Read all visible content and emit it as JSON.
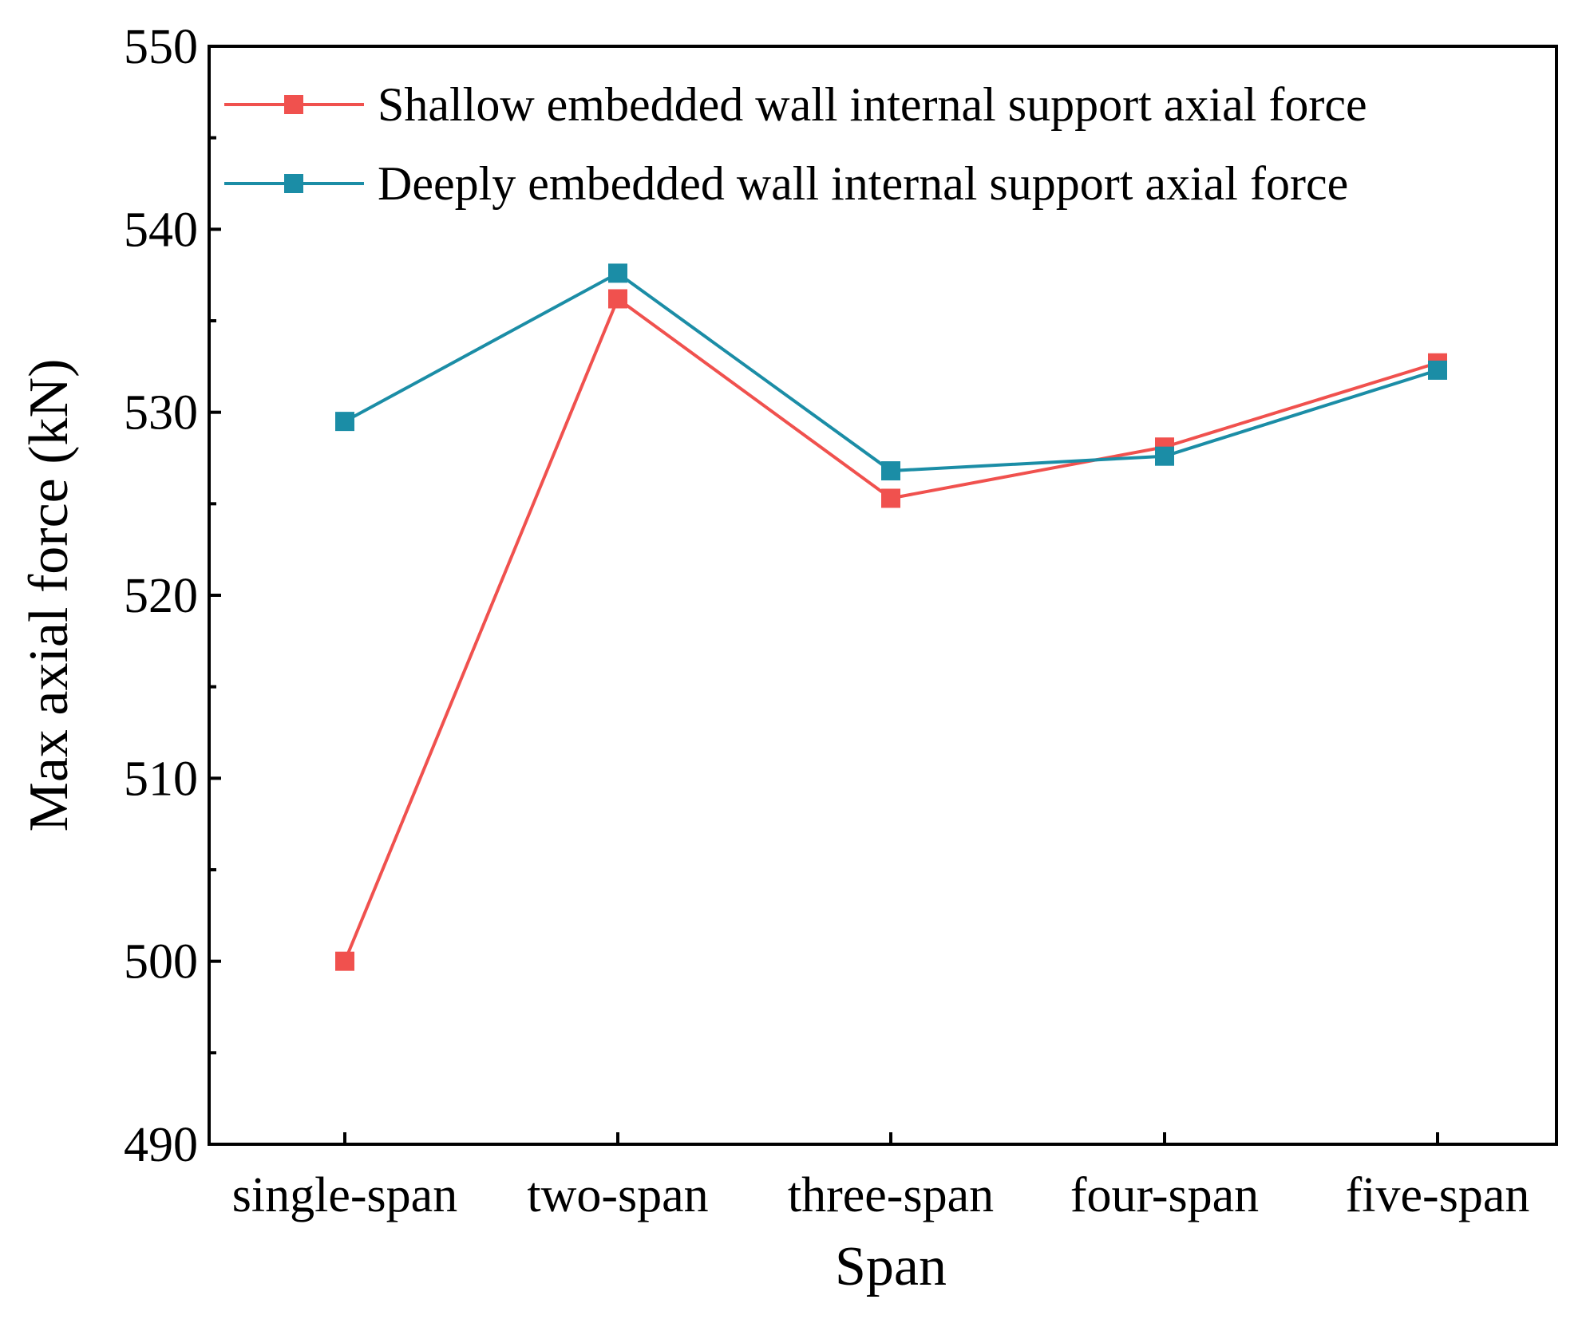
{
  "chart_data": {
    "type": "line",
    "title": "",
    "xlabel": "Span",
    "ylabel": "Max axial force (kN)",
    "categories": [
      "single-span",
      "two-span",
      "three-span",
      "four-span",
      "five-span"
    ],
    "ylim": [
      490,
      550
    ],
    "yticks": [
      490,
      500,
      510,
      520,
      530,
      540,
      550
    ],
    "grid": false,
    "legend_position": "top-left",
    "series": [
      {
        "name": "Shallow embedded wall internal support axial force",
        "color": "#f0514e",
        "values": [
          500.0,
          536.2,
          525.3,
          528.1,
          532.7
        ]
      },
      {
        "name": "Deeply embedded wall internal support axial force",
        "color": "#1b8da6",
        "values": [
          529.5,
          537.6,
          526.8,
          527.6,
          532.3
        ]
      }
    ]
  }
}
